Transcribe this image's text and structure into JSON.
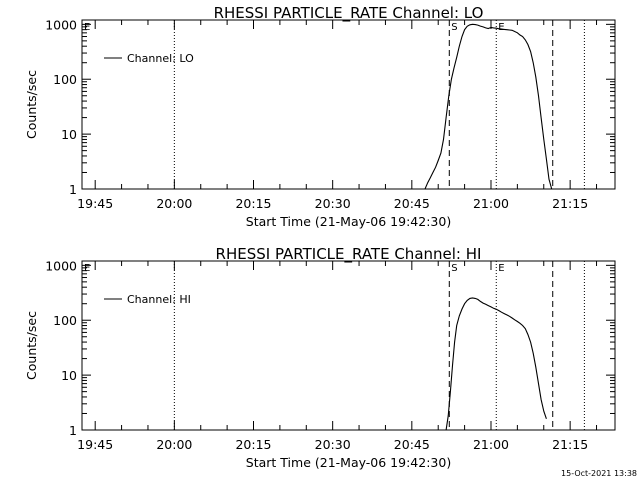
{
  "footer": {
    "timestamp": "15-Oct-2021 13:38"
  },
  "chart_data": [
    {
      "type": "line",
      "title": "RHESSI PARTICLE_RATE Channel: LO",
      "xlabel": "Start Time (21-May-06 19:42:30)",
      "ylabel": "Counts/sec",
      "x_unit": "minutes after 19:42:30",
      "xlim": [
        0,
        101
      ],
      "ylim": [
        1,
        1200
      ],
      "yscale": "log",
      "x_ticks": [
        {
          "value": 2.5,
          "label": "19:45"
        },
        {
          "value": 17.5,
          "label": "20:00"
        },
        {
          "value": 32.5,
          "label": "20:15"
        },
        {
          "value": 47.5,
          "label": "20:30"
        },
        {
          "value": 62.5,
          "label": "20:45"
        },
        {
          "value": 77.5,
          "label": "21:00"
        },
        {
          "value": 92.5,
          "label": "21:15"
        }
      ],
      "y_ticks": [
        {
          "value": 1,
          "label": "1"
        },
        {
          "value": 10,
          "label": "10"
        },
        {
          "value": 100,
          "label": "100"
        },
        {
          "value": 1000,
          "label": "1000"
        }
      ],
      "legend": {
        "entries": [
          "Channel: LO"
        ],
        "position": "top-left"
      },
      "markers": [
        {
          "label": "E",
          "x": 0
        },
        {
          "label": "S",
          "x": 69.6
        },
        {
          "label": "E",
          "x": 78.5
        }
      ],
      "dashed_lines": [
        69.6,
        89.2
      ],
      "dotted_lines": [
        17.5,
        78.5,
        95.2
      ],
      "series": [
        {
          "name": "Channel: LO",
          "x": [
            65.0,
            65.5,
            66.0,
            66.5,
            67.0,
            67.5,
            68.0,
            68.5,
            69.0,
            69.5,
            70.0,
            70.5,
            71.0,
            71.5,
            72.0,
            72.5,
            73.0,
            73.5,
            74.0,
            74.5,
            75.0,
            75.5,
            76.0,
            76.5,
            77.0,
            77.5,
            78.0,
            78.5,
            79.0,
            79.5,
            80.0,
            80.5,
            81.0,
            81.5,
            82.0,
            82.5,
            83.0,
            83.5,
            84.0,
            84.5,
            85.0,
            85.5,
            86.0,
            86.5,
            87.0,
            87.5,
            88.0,
            88.5,
            89.0
          ],
          "y": [
            1,
            1.3,
            1.6,
            2.0,
            2.5,
            3.3,
            4.5,
            8,
            20,
            50,
            100,
            160,
            250,
            400,
            600,
            800,
            920,
            980,
            1000,
            990,
            970,
            930,
            900,
            860,
            840,
            880,
            860,
            850,
            830,
            820,
            810,
            800,
            790,
            780,
            740,
            700,
            640,
            600,
            520,
            430,
            320,
            200,
            110,
            50,
            20,
            8,
            3.5,
            1.5,
            1
          ]
        }
      ]
    },
    {
      "type": "line",
      "title": "RHESSI PARTICLE_RATE Channel: HI",
      "xlabel": "Start Time (21-May-06 19:42:30)",
      "ylabel": "Counts/sec",
      "x_unit": "minutes after 19:42:30",
      "xlim": [
        0,
        101
      ],
      "ylim": [
        1,
        1200
      ],
      "yscale": "log",
      "x_ticks": [
        {
          "value": 2.5,
          "label": "19:45"
        },
        {
          "value": 17.5,
          "label": "20:00"
        },
        {
          "value": 32.5,
          "label": "20:15"
        },
        {
          "value": 47.5,
          "label": "20:30"
        },
        {
          "value": 62.5,
          "label": "20:45"
        },
        {
          "value": 77.5,
          "label": "21:00"
        },
        {
          "value": 92.5,
          "label": "21:15"
        }
      ],
      "y_ticks": [
        {
          "value": 1,
          "label": "1"
        },
        {
          "value": 10,
          "label": "10"
        },
        {
          "value": 100,
          "label": "100"
        },
        {
          "value": 1000,
          "label": "1000"
        }
      ],
      "legend": {
        "entries": [
          "Channel: HI"
        ],
        "position": "top-left"
      },
      "markers": [
        {
          "label": "E",
          "x": 0
        },
        {
          "label": "S",
          "x": 69.6
        },
        {
          "label": "E",
          "x": 78.5
        }
      ],
      "dashed_lines": [
        69.6,
        89.2
      ],
      "dotted_lines": [
        17.5,
        78.5,
        95.2
      ],
      "series": [
        {
          "name": "Channel: HI",
          "x": [
            69.0,
            69.4,
            69.8,
            70.2,
            70.6,
            71.0,
            71.5,
            72.0,
            72.5,
            73.0,
            73.5,
            74.0,
            74.5,
            75.0,
            75.5,
            76.0,
            76.5,
            77.0,
            77.5,
            78.0,
            78.5,
            79.0,
            79.5,
            80.0,
            80.5,
            81.0,
            81.5,
            82.0,
            82.5,
            83.0,
            83.5,
            84.0,
            84.5,
            85.0,
            85.5,
            86.0,
            86.5,
            87.0,
            87.5,
            88.0
          ],
          "y": [
            1,
            1.8,
            5,
            15,
            40,
            80,
            120,
            160,
            200,
            230,
            250,
            255,
            250,
            240,
            220,
            205,
            195,
            185,
            175,
            165,
            158,
            150,
            140,
            132,
            125,
            118,
            110,
            102,
            95,
            88,
            80,
            70,
            55,
            40,
            25,
            14,
            7,
            3.6,
            2.2,
            1.6
          ]
        }
      ]
    }
  ]
}
